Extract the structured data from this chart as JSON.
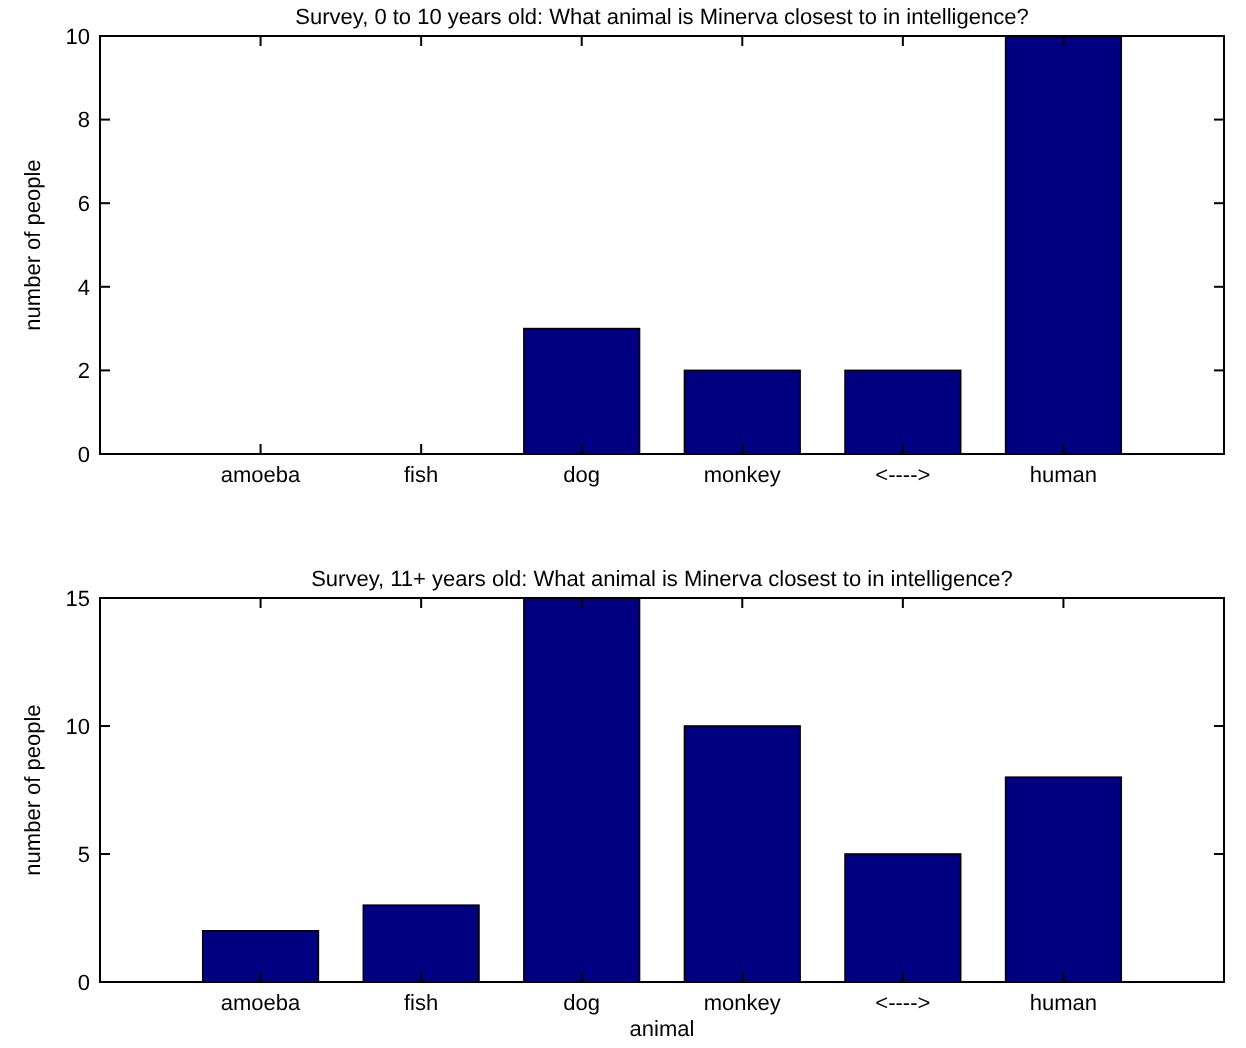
{
  "chart_data": [
    {
      "type": "bar",
      "title": "Survey, 0 to 10 years old: What animal is Minerva closest to in intelligence?",
      "ylabel": "number of people",
      "categories": [
        "amoeba",
        "fish",
        "dog",
        "monkey",
        "<---->",
        "human"
      ],
      "values": [
        0,
        0,
        3,
        2,
        2,
        10
      ],
      "color": "#000080",
      "ylim": [
        0,
        10
      ],
      "yticks": [
        0,
        2,
        4,
        6,
        8,
        10
      ]
    },
    {
      "type": "bar",
      "title": "Survey, 11+ years old: What animal is Minerva closest to in intelligence?",
      "xlabel": "animal",
      "ylabel": "number of people",
      "categories": [
        "amoeba",
        "fish",
        "dog",
        "monkey",
        "<---->",
        "human"
      ],
      "values": [
        2,
        3,
        15,
        10,
        5,
        8
      ],
      "color": "#000080",
      "ylim": [
        0,
        15
      ],
      "yticks": [
        0,
        5,
        10,
        15
      ]
    }
  ]
}
